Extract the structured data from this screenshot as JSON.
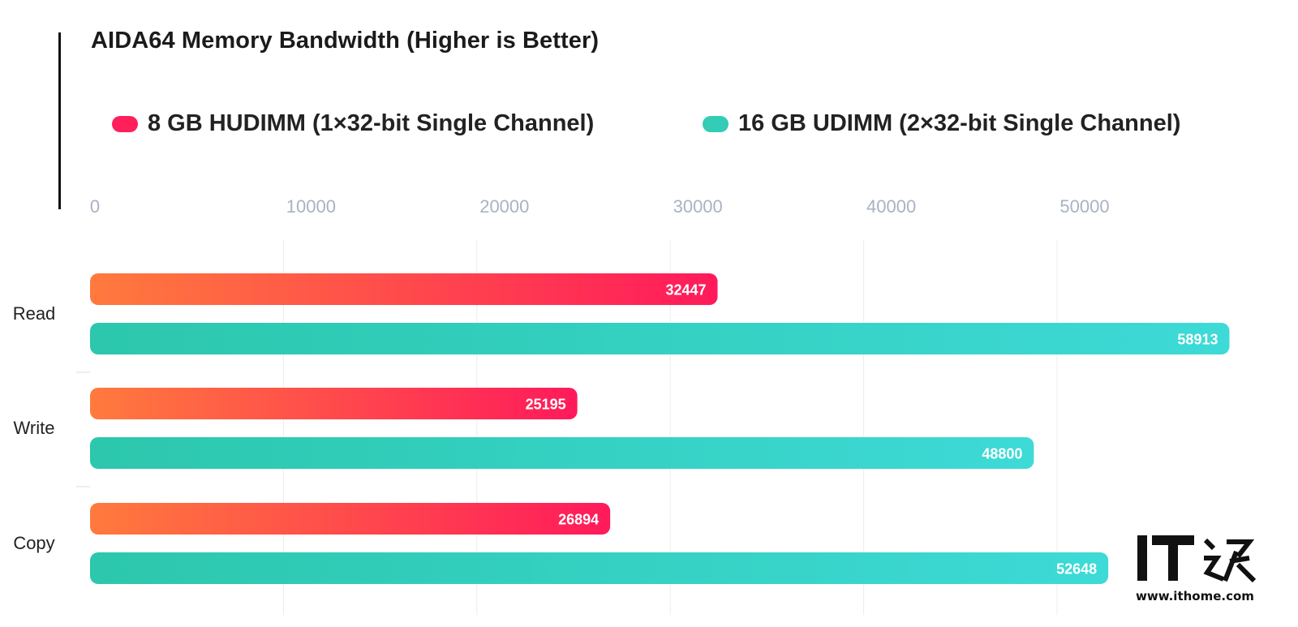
{
  "chart_data": {
    "type": "bar",
    "orientation": "horizontal",
    "title": "AIDA64 Memory Bandwidth (Higher is Better)",
    "categories": [
      "Read",
      "Write",
      "Copy"
    ],
    "series": [
      {
        "name": "8 GB HUDIMM (1×32-bit Single Channel)",
        "values": [
          32447,
          25195,
          26894
        ],
        "color_start": "#ff7a3d",
        "color_end": "#ff1a5b"
      },
      {
        "name": "16 GB UDIMM (2×32-bit Single Channel)",
        "values": [
          58913,
          48800,
          52648
        ],
        "color_start": "#2cc7ac",
        "color_end": "#3ddad7"
      }
    ],
    "xlim": [
      0,
      59000
    ],
    "xticks": [
      0,
      10000,
      20000,
      30000,
      40000,
      50000
    ],
    "xlabel": "",
    "ylabel": "",
    "grid": true,
    "legend_position": "top",
    "data_labels": true
  },
  "colors": {
    "series1_legend": "#ff1f5a",
    "series2_legend": "#33ccb6",
    "gridline": "#ececec",
    "tick_label": "#a9b2c3",
    "category_label": "#222222"
  },
  "watermark": {
    "logo_text": "IT之家",
    "url": "www.ithome.com"
  }
}
